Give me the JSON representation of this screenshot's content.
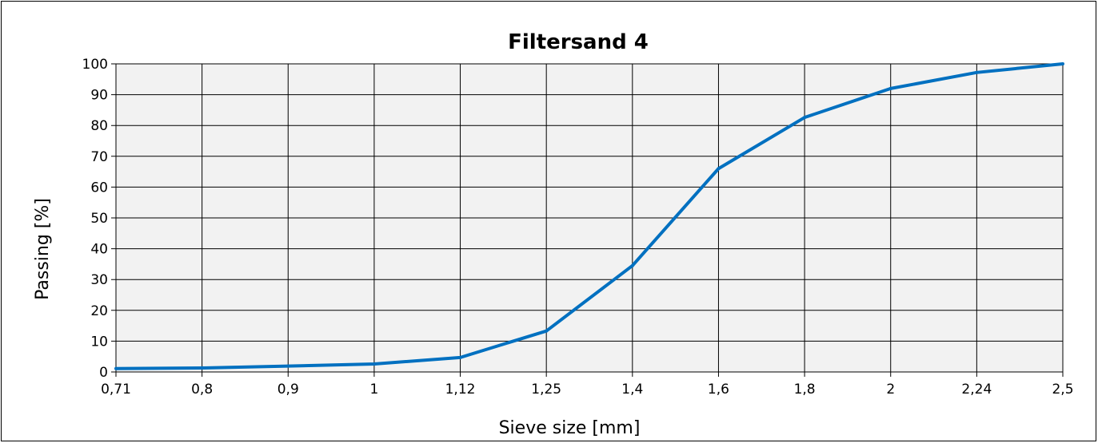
{
  "chart_data": {
    "type": "line",
    "title": "Filtersand 4",
    "xlabel": "Sieve size [mm]",
    "ylabel": "Passing [%]",
    "categories": [
      "0,71",
      "0,8",
      "0,9",
      "1",
      "1,12",
      "1,25",
      "1,4",
      "1,6",
      "1,8",
      "2",
      "2,24",
      "2,5"
    ],
    "yticks": [
      "0",
      "10",
      "20",
      "30",
      "40",
      "50",
      "60",
      "70",
      "80",
      "90",
      "100"
    ],
    "ylim": [
      0,
      100
    ],
    "grid": true,
    "legend": "none",
    "series": [
      {
        "values": [
          1.1,
          1.3,
          1.9,
          2.6,
          4.7,
          13.3,
          34.5,
          66.0,
          82.6,
          92.0,
          97.2,
          100.0
        ],
        "color": "#0070c0"
      }
    ],
    "plot_background": "#f2f2f2",
    "grid_color": "#000000"
  }
}
